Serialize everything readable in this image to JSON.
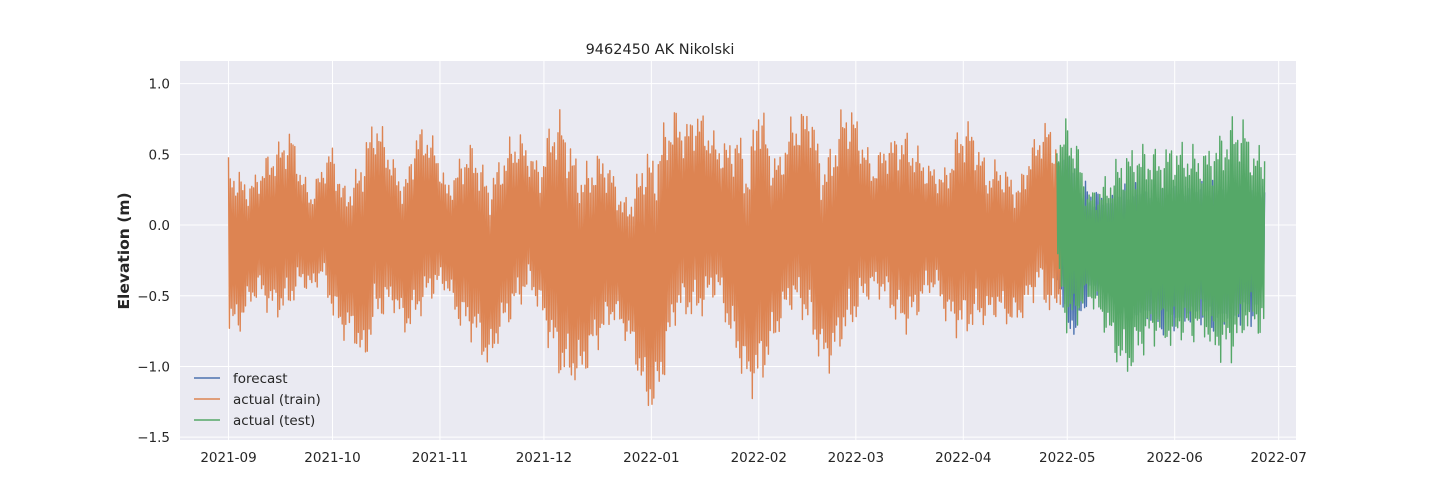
{
  "chart_data": {
    "type": "line",
    "title": "9462450 AK Nikolski",
    "xlabel": "",
    "ylabel": "Elevation (m)",
    "x_range": [
      "2021-08-18",
      "2022-07-06"
    ],
    "ylim": [
      -1.52,
      1.16
    ],
    "grid": true,
    "legend_placement": "lower-left",
    "x_ticks": [
      "2021-09",
      "2021-10",
      "2021-11",
      "2021-12",
      "2022-01",
      "2022-02",
      "2022-03",
      "2022-04",
      "2022-05",
      "2022-06",
      "2022-07"
    ],
    "y_ticks": [
      1.0,
      0.5,
      0.0,
      -0.5,
      -1.0,
      -1.5
    ],
    "y_tick_labels": [
      "1.0",
      "0.5",
      "0.0",
      "−0.5",
      "−1.0",
      "−1.5"
    ],
    "series": [
      {
        "name": "forecast",
        "color": "#4c72b0",
        "x": [
          "2022-04-28",
          "2022-05-01",
          "2022-05-04",
          "2022-05-07",
          "2022-05-10",
          "2022-05-13",
          "2022-05-16",
          "2022-05-19",
          "2022-05-22",
          "2022-05-25",
          "2022-05-28",
          "2022-05-31",
          "2022-06-03",
          "2022-06-06",
          "2022-06-09",
          "2022-06-12",
          "2022-06-15",
          "2022-06-18",
          "2022-06-21",
          "2022-06-24",
          "2022-06-27"
        ],
        "y_max": [
          0.42,
          0.62,
          0.35,
          0.3,
          0.25,
          0.22,
          0.28,
          0.32,
          0.3,
          0.28,
          0.26,
          0.3,
          0.32,
          0.32,
          0.32,
          0.32,
          0.3,
          0.3,
          0.28,
          0.26,
          0.3
        ],
        "y_min": [
          -0.38,
          -0.84,
          -0.8,
          -0.55,
          -0.5,
          -0.45,
          -0.55,
          -0.62,
          -0.7,
          -0.72,
          -0.8,
          -0.76,
          -0.74,
          -0.72,
          -0.72,
          -0.78,
          -0.74,
          -0.72,
          -0.72,
          -0.72,
          -0.36
        ]
      },
      {
        "name": "actual (train)",
        "color": "#dd8452",
        "x": [
          "2021-09-01",
          "2021-09-04",
          "2021-09-07",
          "2021-09-10",
          "2021-09-13",
          "2021-09-16",
          "2021-09-19",
          "2021-09-22",
          "2021-09-25",
          "2021-09-28",
          "2021-10-01",
          "2021-10-04",
          "2021-10-07",
          "2021-10-10",
          "2021-10-13",
          "2021-10-16",
          "2021-10-19",
          "2021-10-22",
          "2021-10-25",
          "2021-10-28",
          "2021-10-31",
          "2021-11-03",
          "2021-11-06",
          "2021-11-09",
          "2021-11-12",
          "2021-11-15",
          "2021-11-18",
          "2021-11-21",
          "2021-11-24",
          "2021-11-27",
          "2021-11-30",
          "2021-12-03",
          "2021-12-06",
          "2021-12-09",
          "2021-12-12",
          "2021-12-15",
          "2021-12-18",
          "2021-12-21",
          "2021-12-24",
          "2021-12-27",
          "2021-12-30",
          "2022-01-02",
          "2022-01-05",
          "2022-01-08",
          "2022-01-11",
          "2022-01-14",
          "2022-01-17",
          "2022-01-20",
          "2022-01-23",
          "2022-01-26",
          "2022-01-29",
          "2022-02-01",
          "2022-02-04",
          "2022-02-07",
          "2022-02-10",
          "2022-02-13",
          "2022-02-16",
          "2022-02-19",
          "2022-02-22",
          "2022-02-25",
          "2022-02-28",
          "2022-03-03",
          "2022-03-06",
          "2022-03-09",
          "2022-03-12",
          "2022-03-15",
          "2022-03-18",
          "2022-03-21",
          "2022-03-24",
          "2022-03-27",
          "2022-03-30",
          "2022-04-02",
          "2022-04-05",
          "2022-04-08",
          "2022-04-11",
          "2022-04-14",
          "2022-04-17",
          "2022-04-20",
          "2022-04-23",
          "2022-04-26",
          "2022-04-29"
        ],
        "y_max": [
          0.48,
          0.4,
          0.32,
          0.42,
          0.55,
          0.62,
          0.72,
          0.4,
          0.25,
          0.45,
          0.6,
          0.3,
          0.35,
          0.58,
          0.82,
          0.68,
          0.45,
          0.35,
          0.7,
          0.72,
          0.58,
          0.3,
          0.45,
          0.62,
          0.55,
          0.35,
          0.48,
          0.62,
          0.68,
          0.55,
          0.45,
          0.78,
          0.85,
          0.6,
          0.42,
          0.5,
          0.55,
          0.4,
          0.2,
          0.28,
          0.6,
          0.52,
          0.78,
          0.85,
          0.75,
          0.88,
          0.76,
          0.62,
          0.62,
          0.72,
          0.45,
          1.04,
          0.62,
          0.5,
          0.76,
          0.82,
          0.92,
          0.48,
          0.58,
          0.86,
          0.88,
          0.65,
          0.45,
          0.6,
          0.66,
          0.7,
          0.6,
          0.48,
          0.42,
          0.42,
          0.68,
          0.8,
          0.65,
          0.42,
          0.48,
          0.4,
          0.32,
          0.55,
          0.7,
          0.78,
          0.48
        ],
        "y_min": [
          -0.78,
          -0.8,
          -0.6,
          -0.52,
          -0.66,
          -0.68,
          -0.62,
          -0.45,
          -0.5,
          -0.4,
          -0.68,
          -0.82,
          -0.82,
          -1.09,
          -0.75,
          -0.66,
          -0.62,
          -0.8,
          -0.72,
          -0.6,
          -0.5,
          -0.48,
          -0.72,
          -0.8,
          -0.88,
          -1.08,
          -0.85,
          -0.72,
          -0.6,
          -0.48,
          -0.66,
          -0.94,
          -1.14,
          -1.17,
          -1.14,
          -0.96,
          -0.84,
          -0.7,
          -0.8,
          -0.95,
          -1.34,
          -1.39,
          -1.08,
          -0.7,
          -0.68,
          -0.72,
          -0.62,
          -0.5,
          -0.78,
          -1.02,
          -1.22,
          -1.24,
          -1.0,
          -0.78,
          -0.62,
          -0.66,
          -0.82,
          -1.02,
          -1.06,
          -0.88,
          -0.78,
          -0.6,
          -0.5,
          -0.55,
          -0.7,
          -0.8,
          -0.72,
          -0.54,
          -0.48,
          -0.7,
          -0.8,
          -0.82,
          -0.74,
          -0.72,
          -0.66,
          -0.74,
          -0.72,
          -0.6,
          -0.48,
          -0.7,
          -0.6
        ]
      },
      {
        "name": "actual (test)",
        "color": "#55a868",
        "x": [
          "2022-04-28",
          "2022-05-01",
          "2022-05-04",
          "2022-05-07",
          "2022-05-10",
          "2022-05-13",
          "2022-05-16",
          "2022-05-19",
          "2022-05-22",
          "2022-05-25",
          "2022-05-28",
          "2022-05-31",
          "2022-06-03",
          "2022-06-06",
          "2022-06-09",
          "2022-06-12",
          "2022-06-15",
          "2022-06-18",
          "2022-06-21",
          "2022-06-24",
          "2022-06-27"
        ],
        "y_max": [
          0.65,
          0.78,
          0.6,
          0.25,
          0.3,
          0.38,
          0.52,
          0.58,
          0.6,
          0.58,
          0.55,
          0.62,
          0.6,
          0.58,
          0.55,
          0.62,
          0.7,
          0.8,
          0.78,
          0.55,
          0.62
        ],
        "y_min": [
          -0.38,
          -0.8,
          -0.72,
          -0.55,
          -0.68,
          -0.84,
          -1.06,
          -1.12,
          -0.96,
          -0.88,
          -0.84,
          -0.92,
          -0.84,
          -0.86,
          -0.8,
          -0.96,
          -1.0,
          -0.98,
          -0.82,
          -0.76,
          -0.9
        ]
      }
    ]
  }
}
